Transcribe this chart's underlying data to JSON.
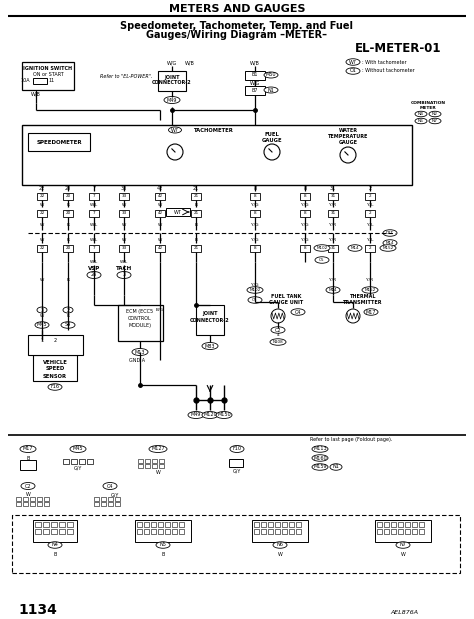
{
  "title_top": "METERS AND GAUGES",
  "title_main_line1": "Speedometer, Tachometer, Temp. and Fuel",
  "title_main_line2": "Gauges/Wiring Diagram –METER–",
  "diagram_id": "EL-METER-01",
  "page_number": "1134",
  "figure_code": "AEL876A",
  "bg_color": "#ffffff",
  "lc": "#000000"
}
